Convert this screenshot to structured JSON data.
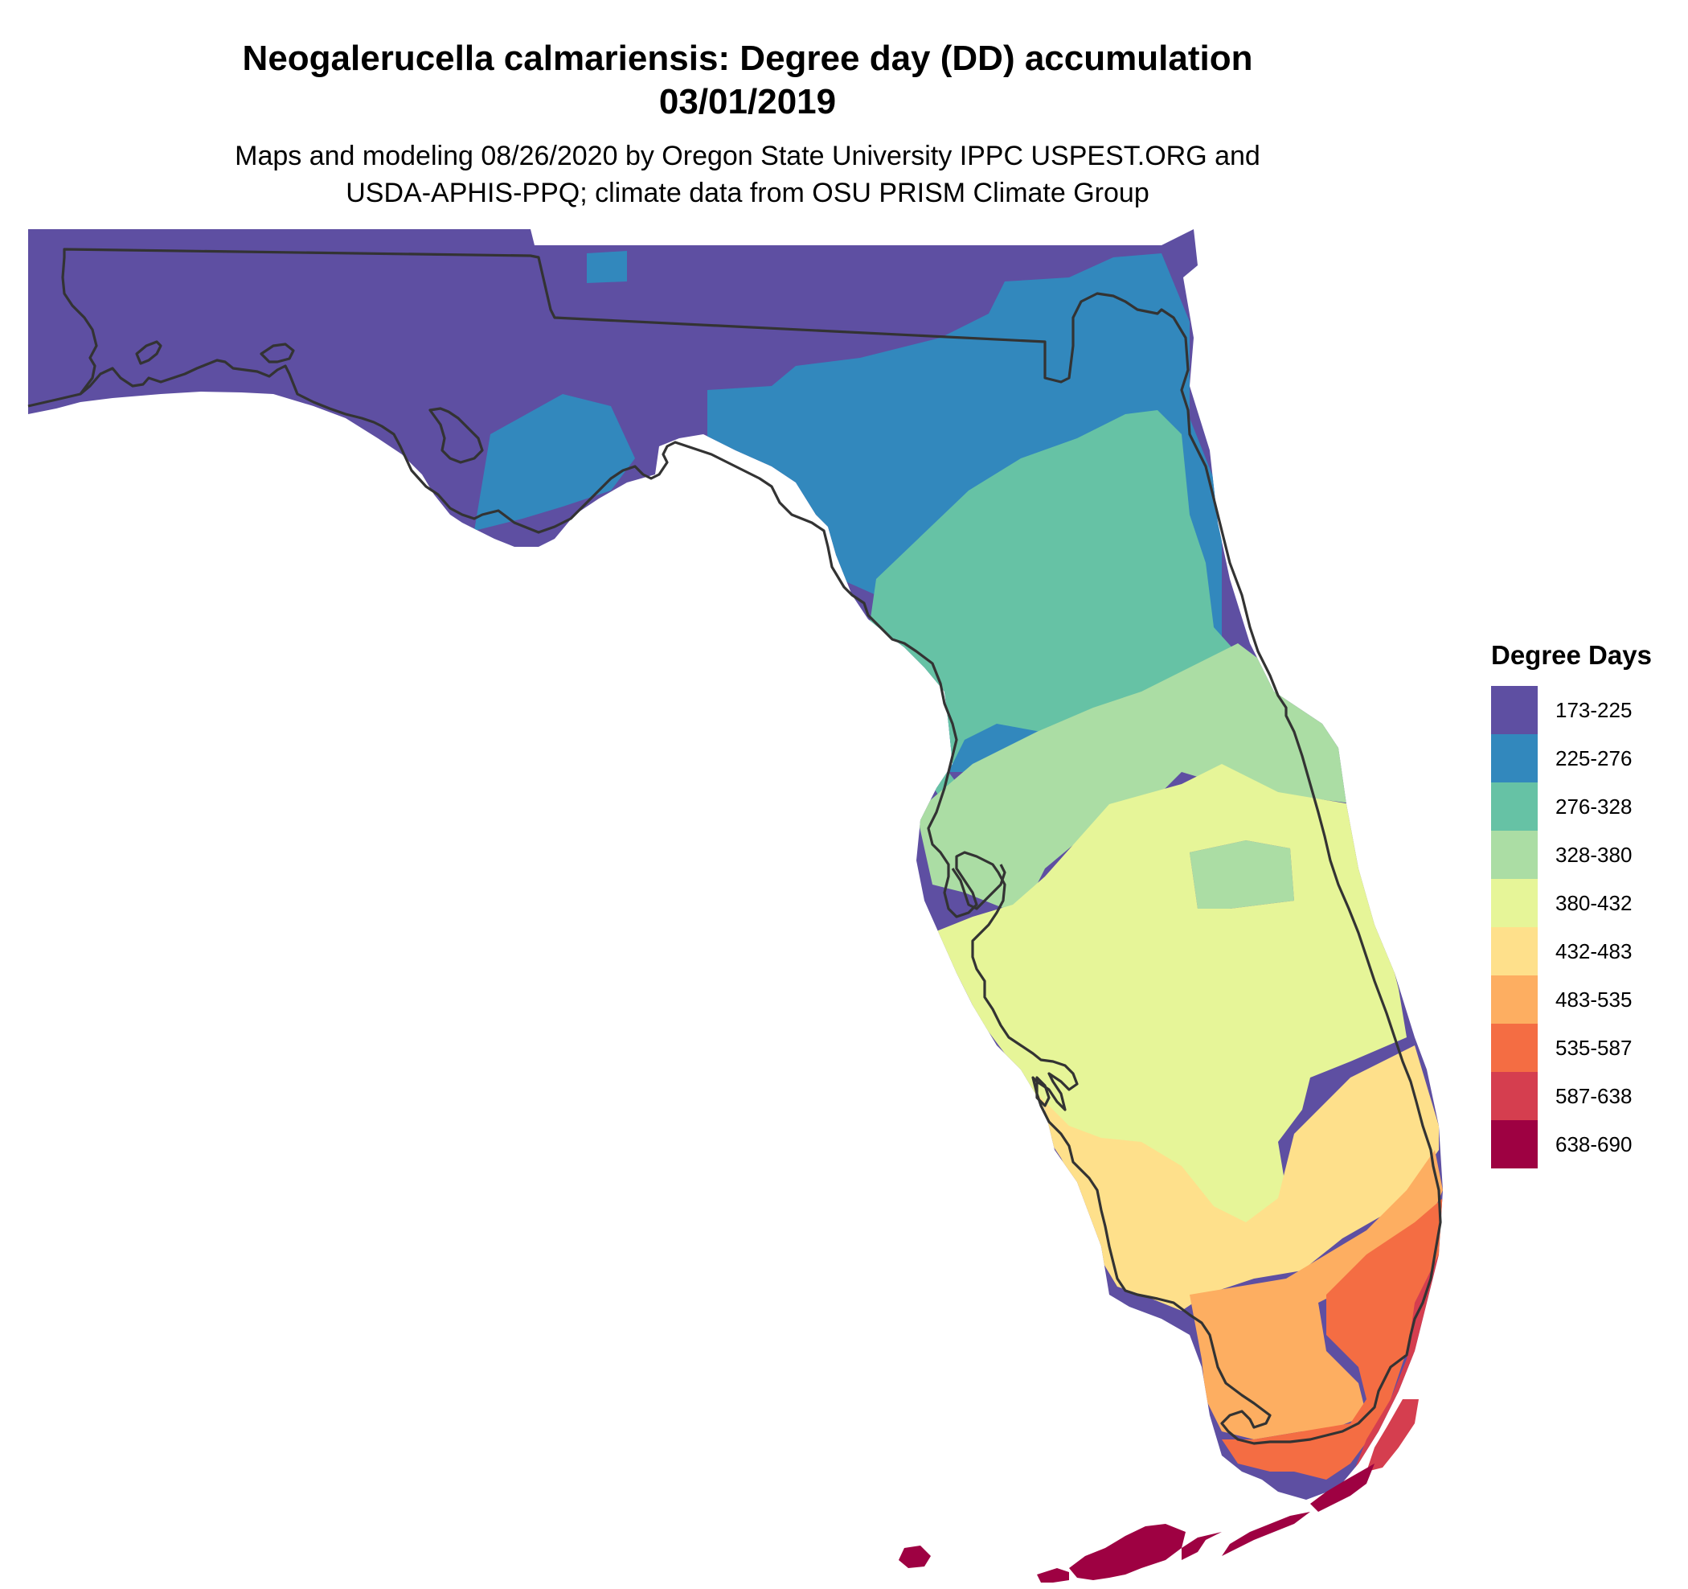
{
  "title": {
    "line1": "Neogalerucella calmariensis: Degree day (DD) accumulation",
    "line2": "03/01/2019"
  },
  "subtitle": {
    "line1": "Maps and modeling 08/26/2020 by Oregon State University IPPC USPEST.ORG and",
    "line2": "USDA-APHIS-PPQ; climate data from OSU PRISM Climate Group"
  },
  "legend": {
    "title": "Degree Days",
    "items": [
      {
        "label": "173-225",
        "color": "#5e4fa2"
      },
      {
        "label": "225-276",
        "color": "#3288bd"
      },
      {
        "label": "276-328",
        "color": "#66c2a5"
      },
      {
        "label": "328-380",
        "color": "#abdda4"
      },
      {
        "label": "380-432",
        "color": "#e6f598"
      },
      {
        "label": "432-483",
        "color": "#fee08b"
      },
      {
        "label": "483-535",
        "color": "#fdae61"
      },
      {
        "label": "535-587",
        "color": "#f46d43"
      },
      {
        "label": "587-638",
        "color": "#d53e4f"
      },
      {
        "label": "638-690",
        "color": "#9e0142"
      }
    ]
  }
}
